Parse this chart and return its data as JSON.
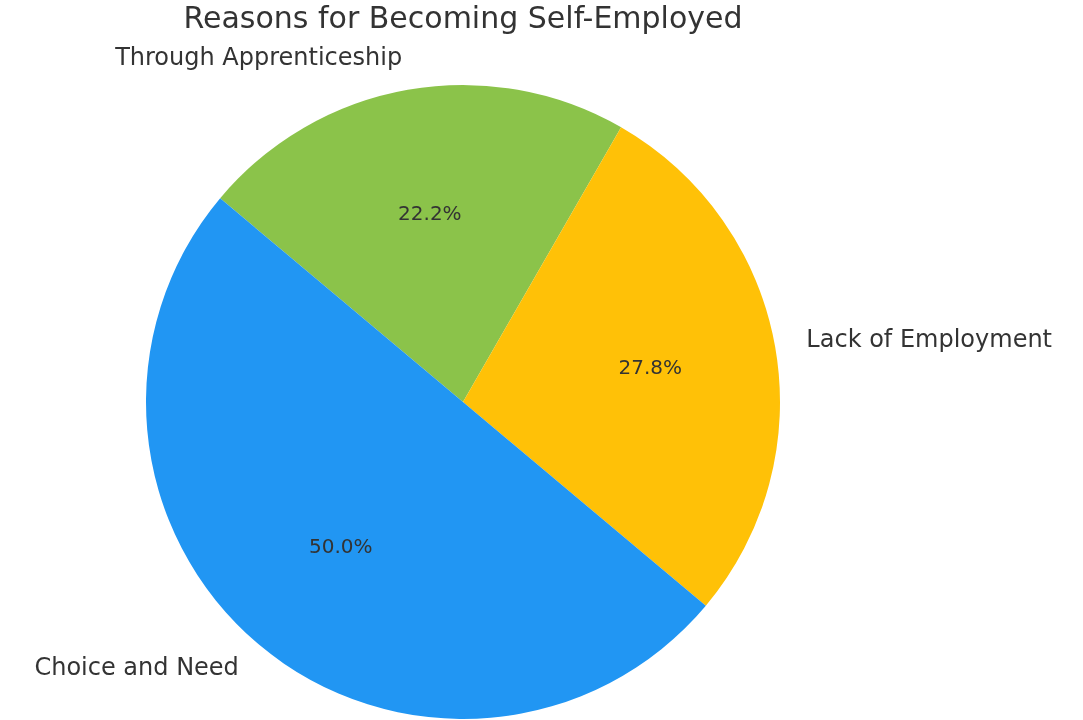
{
  "chart_data": {
    "type": "pie",
    "title": "Reasons for Becoming Self-Employed",
    "categories": [
      "Choice and Need",
      "Lack of Employment",
      "Through Apprenticeship"
    ],
    "values": [
      50.0,
      27.8,
      22.2
    ],
    "colors": [
      "#2196f3",
      "#ffc107",
      "#8bc34a"
    ],
    "value_labels": [
      "50.0%",
      "27.8%",
      "22.2%"
    ],
    "legend": false
  }
}
